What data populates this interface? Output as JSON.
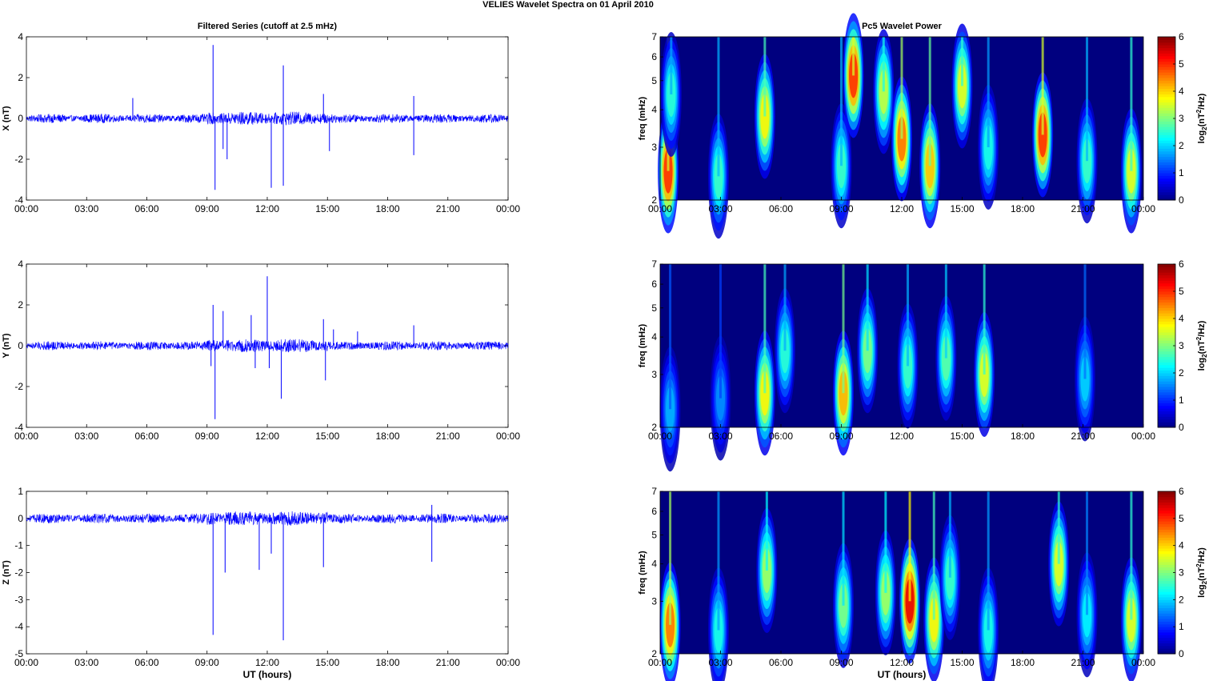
{
  "figure": {
    "main_title": "VELIES Wavelet Spectra on 01 April      2010",
    "left_title": "Filtered Series (cutoff at 2.5 mHz)",
    "right_title": "Pc5 Wavelet Power"
  },
  "colors": {
    "trace": "#0000ff",
    "background": "#00007f",
    "colormap": [
      "#00007f",
      "#0000ff",
      "#007fff",
      "#00ffff",
      "#7fff7f",
      "#ffff00",
      "#ff7f00",
      "#ff0000",
      "#7f0000"
    ]
  },
  "chart_data": [
    {
      "type": "line",
      "panel": "series-x",
      "title": "Filtered Series (cutoff at 2.5 mHz)",
      "xlabel": "",
      "ylabel": "X (nT)",
      "xlim": [
        "00:00",
        "00:00"
      ],
      "ylim": [
        -4,
        4
      ],
      "x_ticks": [
        "00:00",
        "03:00",
        "06:00",
        "09:00",
        "12:00",
        "15:00",
        "18:00",
        "21:00",
        "00:00"
      ],
      "y_ticks": [
        "4",
        "2",
        "0",
        "-2",
        "-4"
      ],
      "y_tick_values": [
        4,
        2,
        0,
        -2,
        -4
      ],
      "noise_amplitude": 0.22,
      "spikes": [
        {
          "x": 5.3,
          "y": 1.0
        },
        {
          "x": 9.3,
          "y": 3.6
        },
        {
          "x": 9.4,
          "y": -3.5
        },
        {
          "x": 9.8,
          "y": -1.5
        },
        {
          "x": 10.0,
          "y": -2.0
        },
        {
          "x": 12.2,
          "y": -3.4
        },
        {
          "x": 12.8,
          "y": 2.6
        },
        {
          "x": 12.8,
          "y": -3.3
        },
        {
          "x": 14.8,
          "y": 1.2
        },
        {
          "x": 15.1,
          "y": -1.6
        },
        {
          "x": 19.3,
          "y": 1.1
        },
        {
          "x": 19.3,
          "y": -1.8
        }
      ]
    },
    {
      "type": "line",
      "panel": "series-y",
      "xlabel": "",
      "ylabel": "Y (nT)",
      "xlim": [
        "00:00",
        "00:00"
      ],
      "ylim": [
        -4,
        4
      ],
      "x_ticks": [
        "00:00",
        "03:00",
        "06:00",
        "09:00",
        "12:00",
        "15:00",
        "18:00",
        "21:00",
        "00:00"
      ],
      "y_ticks": [
        "4",
        "2",
        "0",
        "-2",
        "-4"
      ],
      "y_tick_values": [
        4,
        2,
        0,
        -2,
        -4
      ],
      "noise_amplitude": 0.22,
      "spikes": [
        {
          "x": 9.2,
          "y": -1.0
        },
        {
          "x": 9.3,
          "y": 2.0
        },
        {
          "x": 9.4,
          "y": -3.6
        },
        {
          "x": 9.8,
          "y": 1.7
        },
        {
          "x": 11.2,
          "y": 1.5
        },
        {
          "x": 11.4,
          "y": -1.1
        },
        {
          "x": 12.0,
          "y": 3.4
        },
        {
          "x": 12.1,
          "y": -1.1
        },
        {
          "x": 12.7,
          "y": -2.6
        },
        {
          "x": 14.8,
          "y": 1.3
        },
        {
          "x": 14.9,
          "y": -1.7
        },
        {
          "x": 15.3,
          "y": 0.8
        },
        {
          "x": 16.5,
          "y": 0.7
        },
        {
          "x": 19.3,
          "y": 1.0
        }
      ]
    },
    {
      "type": "line",
      "panel": "series-z",
      "xlabel": "UT (hours)",
      "ylabel": "Z (nT)",
      "xlim": [
        "00:00",
        "00:00"
      ],
      "ylim": [
        -5,
        1
      ],
      "x_ticks": [
        "00:00",
        "03:00",
        "06:00",
        "09:00",
        "12:00",
        "15:00",
        "18:00",
        "21:00",
        "00:00"
      ],
      "y_ticks": [
        "1",
        "0",
        "-1",
        "-2",
        "-3",
        "-4",
        "-5"
      ],
      "y_tick_values": [
        1,
        0,
        -1,
        -2,
        -3,
        -4,
        -5
      ],
      "noise_amplitude": 0.18,
      "spikes": [
        {
          "x": 9.3,
          "y": -4.3
        },
        {
          "x": 9.9,
          "y": -2.0
        },
        {
          "x": 11.6,
          "y": -1.9
        },
        {
          "x": 12.2,
          "y": -1.3
        },
        {
          "x": 12.8,
          "y": -4.5
        },
        {
          "x": 14.8,
          "y": -1.8
        },
        {
          "x": 20.2,
          "y": -1.6
        },
        {
          "x": 20.2,
          "y": 0.5
        }
      ]
    },
    {
      "type": "heatmap",
      "panel": "wavelet-x",
      "title": "Pc5 Wavelet Power",
      "xlabel": "",
      "ylabel": "freq (mHz)",
      "xlim": [
        "00:00",
        "00:00"
      ],
      "ylim": [
        2,
        7
      ],
      "y_scale": "log",
      "x_ticks": [
        "00:00",
        "03:00",
        "06:00",
        "09:00",
        "12:00",
        "15:00",
        "18:00",
        "21:00",
        "00:00"
      ],
      "y_ticks": [
        "7",
        "6",
        "5",
        "4",
        "3",
        "2"
      ],
      "y_tick_values": [
        7,
        6,
        5,
        4,
        3,
        2
      ],
      "colorbar_label": "log2(nT2/Hz)",
      "colorbar_range": [
        0,
        6
      ],
      "colorbar_ticks": [
        "6",
        "5",
        "4",
        "3",
        "2",
        "1",
        "0"
      ],
      "features": [
        {
          "t": 0.4,
          "f": 2.5,
          "power": 5.0
        },
        {
          "t": 0.55,
          "f": 4.5,
          "power": 2.5
        },
        {
          "t": 2.9,
          "f": 2.4,
          "power": 2.6
        },
        {
          "t": 5.2,
          "f": 3.8,
          "power": 3.8
        },
        {
          "t": 9.0,
          "f": 2.6,
          "power": 2.6
        },
        {
          "t": 9.6,
          "f": 5.2,
          "power": 5.0
        },
        {
          "t": 11.1,
          "f": 4.6,
          "power": 3.4
        },
        {
          "t": 12.0,
          "f": 3.2,
          "power": 4.6
        },
        {
          "t": 13.4,
          "f": 2.6,
          "power": 4.1
        },
        {
          "t": 15.0,
          "f": 4.8,
          "power": 3.6
        },
        {
          "t": 16.3,
          "f": 3.0,
          "power": 2.4
        },
        {
          "t": 19.0,
          "f": 3.3,
          "power": 5.0
        },
        {
          "t": 21.2,
          "f": 2.7,
          "power": 2.6
        },
        {
          "t": 23.4,
          "f": 2.5,
          "power": 3.6
        }
      ]
    },
    {
      "type": "heatmap",
      "panel": "wavelet-y",
      "xlabel": "",
      "ylabel": "freq (mHz)",
      "xlim": [
        "00:00",
        "00:00"
      ],
      "ylim": [
        2,
        7
      ],
      "y_scale": "log",
      "x_ticks": [
        "00:00",
        "03:00",
        "06:00",
        "09:00",
        "12:00",
        "15:00",
        "18:00",
        "21:00",
        "00:00"
      ],
      "y_ticks": [
        "7",
        "6",
        "5",
        "4",
        "3",
        "2"
      ],
      "y_tick_values": [
        7,
        6,
        5,
        4,
        3,
        2
      ],
      "colorbar_label": "log2(nT2/Hz)",
      "colorbar_range": [
        0,
        6
      ],
      "colorbar_ticks": [
        "6",
        "5",
        "4",
        "3",
        "2",
        "1",
        "0"
      ],
      "features": [
        {
          "t": 0.5,
          "f": 2.3,
          "power": 1.8
        },
        {
          "t": 3.0,
          "f": 2.5,
          "power": 1.6
        },
        {
          "t": 5.2,
          "f": 2.6,
          "power": 3.8
        },
        {
          "t": 6.2,
          "f": 3.6,
          "power": 2.5
        },
        {
          "t": 9.1,
          "f": 2.6,
          "power": 4.2
        },
        {
          "t": 10.3,
          "f": 3.6,
          "power": 3.0
        },
        {
          "t": 12.3,
          "f": 3.2,
          "power": 2.6
        },
        {
          "t": 14.2,
          "f": 3.4,
          "power": 2.8
        },
        {
          "t": 16.1,
          "f": 3.0,
          "power": 3.6
        },
        {
          "t": 21.1,
          "f": 2.9,
          "power": 2.0
        }
      ]
    },
    {
      "type": "heatmap",
      "panel": "wavelet-z",
      "xlabel": "UT (hours)",
      "ylabel": "freq (mHz)",
      "xlim": [
        "00:00",
        "00:00"
      ],
      "ylim": [
        2,
        7
      ],
      "y_scale": "log",
      "x_ticks": [
        "00:00",
        "03:00",
        "06:00",
        "09:00",
        "12:00",
        "15:00",
        "18:00",
        "21:00",
        "00:00"
      ],
      "y_ticks": [
        "7",
        "6",
        "5",
        "4",
        "3",
        "2"
      ],
      "y_tick_values": [
        7,
        6,
        5,
        4,
        3,
        2
      ],
      "colorbar_label": "log2(nT2/Hz)",
      "colorbar_range": [
        0,
        6
      ],
      "colorbar_ticks": [
        "6",
        "5",
        "4",
        "3",
        "2",
        "1",
        "0"
      ],
      "features": [
        {
          "t": 0.5,
          "f": 2.5,
          "power": 4.6
        },
        {
          "t": 2.9,
          "f": 2.4,
          "power": 2.4
        },
        {
          "t": 5.3,
          "f": 3.8,
          "power": 3.2
        },
        {
          "t": 9.1,
          "f": 2.9,
          "power": 3.0
        },
        {
          "t": 11.2,
          "f": 3.2,
          "power": 3.2
        },
        {
          "t": 12.4,
          "f": 3.0,
          "power": 5.4
        },
        {
          "t": 13.6,
          "f": 2.6,
          "power": 3.8
        },
        {
          "t": 14.4,
          "f": 3.6,
          "power": 2.6
        },
        {
          "t": 16.3,
          "f": 2.4,
          "power": 2.4
        },
        {
          "t": 19.8,
          "f": 4.0,
          "power": 3.6
        },
        {
          "t": 21.2,
          "f": 2.7,
          "power": 2.2
        },
        {
          "t": 23.4,
          "f": 2.6,
          "power": 3.6
        }
      ]
    }
  ]
}
